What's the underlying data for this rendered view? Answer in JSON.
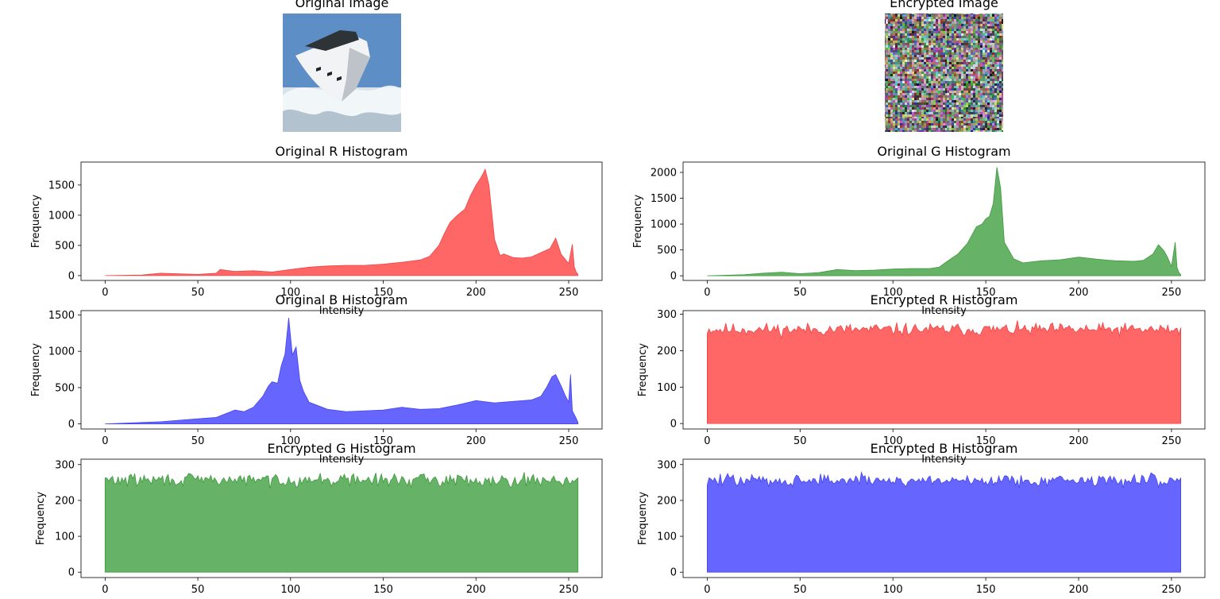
{
  "images": {
    "original": {
      "title": "Original Image"
    },
    "encrypted": {
      "title": "Encrypted Image"
    }
  },
  "colors": {
    "red": "#ff6666",
    "green": "#66b266",
    "blue": "#6666ff",
    "red_edge": "#ee4444",
    "green_edge": "#3f9a3f",
    "blue_edge": "#4444ee",
    "sky": "#5d8fc6",
    "water": "#d8e3ec",
    "hull": "#f2f3f5"
  },
  "chart_data": [
    {
      "id": "orig-r",
      "type": "area",
      "title": "Original R Histogram",
      "xlabel": "Intensity",
      "ylabel": "Frequency",
      "xlim": [
        -13,
        268
      ],
      "ylim": [
        -80,
        1880
      ],
      "xticks": [
        0,
        50,
        100,
        150,
        200,
        250
      ],
      "yticks": [
        0,
        500,
        1000,
        1500
      ],
      "color": "red",
      "x": [
        0,
        20,
        30,
        40,
        50,
        60,
        62,
        70,
        80,
        90,
        100,
        110,
        120,
        130,
        140,
        150,
        160,
        170,
        175,
        180,
        183,
        186,
        190,
        194,
        197,
        200,
        203,
        205,
        207,
        210,
        213,
        215,
        220,
        225,
        230,
        235,
        240,
        243,
        246,
        250,
        252,
        253,
        254,
        255
      ],
      "y": [
        0,
        10,
        40,
        30,
        20,
        40,
        100,
        70,
        80,
        60,
        100,
        140,
        160,
        170,
        170,
        190,
        220,
        260,
        320,
        500,
        700,
        880,
        1000,
        1100,
        1320,
        1500,
        1640,
        1760,
        1500,
        600,
        330,
        360,
        300,
        290,
        310,
        380,
        450,
        620,
        350,
        200,
        520,
        150,
        60,
        20
      ]
    },
    {
      "id": "orig-g",
      "type": "area",
      "title": "Original G Histogram",
      "xlabel": "Intensity",
      "ylabel": "Frequency",
      "xlim": [
        -13,
        268
      ],
      "ylim": [
        -90,
        2200
      ],
      "xticks": [
        0,
        50,
        100,
        150,
        200,
        250
      ],
      "yticks": [
        0,
        500,
        1000,
        1500,
        2000
      ],
      "color": "green",
      "x": [
        0,
        20,
        30,
        40,
        50,
        60,
        70,
        80,
        90,
        100,
        110,
        120,
        125,
        128,
        132,
        135,
        140,
        145,
        148,
        150,
        152,
        154,
        156,
        158,
        160,
        165,
        170,
        180,
        190,
        200,
        210,
        220,
        230,
        235,
        240,
        243,
        246,
        248,
        250,
        252,
        253,
        254,
        255
      ],
      "y": [
        0,
        20,
        50,
        70,
        40,
        60,
        120,
        100,
        110,
        130,
        140,
        140,
        170,
        250,
        350,
        420,
        620,
        950,
        1000,
        1100,
        1150,
        1400,
        2100,
        1700,
        650,
        330,
        250,
        290,
        310,
        360,
        320,
        290,
        280,
        300,
        420,
        600,
        480,
        350,
        180,
        650,
        160,
        60,
        20
      ]
    },
    {
      "id": "orig-b",
      "type": "area",
      "title": "Original B Histogram",
      "xlabel": "Intensity",
      "ylabel": "Frequency",
      "xlim": [
        -13,
        268
      ],
      "ylim": [
        -70,
        1560
      ],
      "xticks": [
        0,
        50,
        100,
        150,
        200,
        250
      ],
      "yticks": [
        0,
        500,
        1000,
        1500
      ],
      "color": "blue",
      "x": [
        0,
        20,
        30,
        40,
        50,
        60,
        65,
        70,
        75,
        80,
        85,
        88,
        90,
        93,
        95,
        97,
        99,
        101,
        103,
        105,
        107,
        110,
        115,
        120,
        130,
        140,
        150,
        160,
        170,
        180,
        190,
        200,
        210,
        220,
        230,
        235,
        238,
        241,
        243,
        246,
        248,
        250,
        251,
        252,
        254,
        255
      ],
      "y": [
        0,
        20,
        30,
        50,
        70,
        90,
        140,
        190,
        170,
        230,
        380,
        520,
        580,
        560,
        800,
        960,
        1460,
        950,
        1060,
        600,
        450,
        300,
        250,
        200,
        170,
        180,
        190,
        230,
        200,
        210,
        260,
        320,
        290,
        310,
        330,
        380,
        500,
        650,
        680,
        520,
        400,
        300,
        680,
        180,
        80,
        20
      ]
    },
    {
      "id": "enc-r",
      "type": "area",
      "noise": true,
      "seed": 11,
      "mean": 258,
      "amp": 26,
      "title": "Encrypted R Histogram",
      "xlabel": "Intensity",
      "ylabel": "Frequency",
      "xlim": [
        -13,
        268
      ],
      "ylim": [
        -15,
        310
      ],
      "xticks": [
        0,
        50,
        100,
        150,
        200,
        250
      ],
      "yticks": [
        0,
        100,
        200,
        300
      ],
      "color": "red"
    },
    {
      "id": "enc-g",
      "type": "area",
      "noise": true,
      "seed": 29,
      "mean": 257,
      "amp": 27,
      "title": "Encrypted G Histogram",
      "xlabel": "",
      "ylabel": "Frequency",
      "xlim": [
        -13,
        268
      ],
      "ylim": [
        -15,
        315
      ],
      "xticks": [
        0,
        50,
        100,
        150,
        200,
        250
      ],
      "yticks": [
        0,
        100,
        200,
        300
      ],
      "color": "green"
    },
    {
      "id": "enc-b",
      "type": "area",
      "noise": true,
      "seed": 47,
      "mean": 256,
      "amp": 27,
      "title": "Encrypted B Histogram",
      "xlabel": "",
      "ylabel": "Frequency",
      "xlim": [
        -13,
        268
      ],
      "ylim": [
        -15,
        315
      ],
      "xticks": [
        0,
        50,
        100,
        150,
        200,
        250
      ],
      "yticks": [
        0,
        100,
        200,
        300
      ],
      "color": "blue"
    }
  ]
}
